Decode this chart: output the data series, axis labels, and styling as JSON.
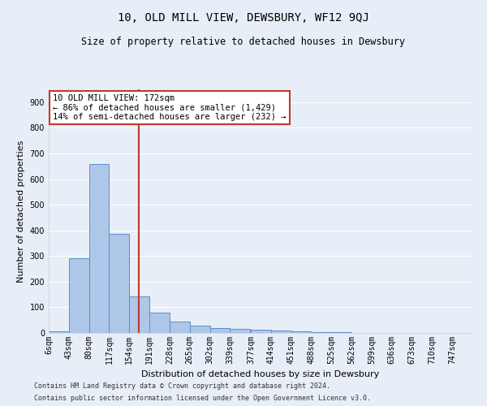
{
  "title": "10, OLD MILL VIEW, DEWSBURY, WF12 9QJ",
  "subtitle": "Size of property relative to detached houses in Dewsbury",
  "xlabel": "Distribution of detached houses by size in Dewsbury",
  "ylabel": "Number of detached properties",
  "footnote1": "Contains HM Land Registry data © Crown copyright and database right 2024.",
  "footnote2": "Contains public sector information licensed under the Open Government Licence v3.0.",
  "annotation_title": "10 OLD MILL VIEW: 172sqm",
  "annotation_line1": "← 86% of detached houses are smaller (1,429)",
  "annotation_line2": "14% of semi-detached houses are larger (232) →",
  "property_size": 172,
  "bar_color": "#aec6e8",
  "bar_edge_color": "#5b8fc9",
  "vline_color": "#c0392b",
  "annotation_box_color": "#ffffff",
  "annotation_box_edge_color": "#c0392b",
  "bins": [
    6,
    43,
    80,
    117,
    154,
    191,
    228,
    265,
    302,
    339,
    377,
    414,
    451,
    488,
    525,
    562,
    599,
    636,
    673,
    710,
    747
  ],
  "counts": [
    5,
    290,
    660,
    385,
    142,
    80,
    45,
    28,
    20,
    15,
    12,
    8,
    5,
    3,
    2,
    1,
    0,
    0,
    0,
    0
  ],
  "ylim": [
    0,
    950
  ],
  "yticks": [
    0,
    100,
    200,
    300,
    400,
    500,
    600,
    700,
    800,
    900
  ],
  "background_color": "#e8eef7",
  "grid_color": "#ffffff",
  "title_fontsize": 10,
  "subtitle_fontsize": 8.5,
  "ylabel_fontsize": 8,
  "xlabel_fontsize": 8,
  "tick_fontsize": 7,
  "footnote_fontsize": 6
}
